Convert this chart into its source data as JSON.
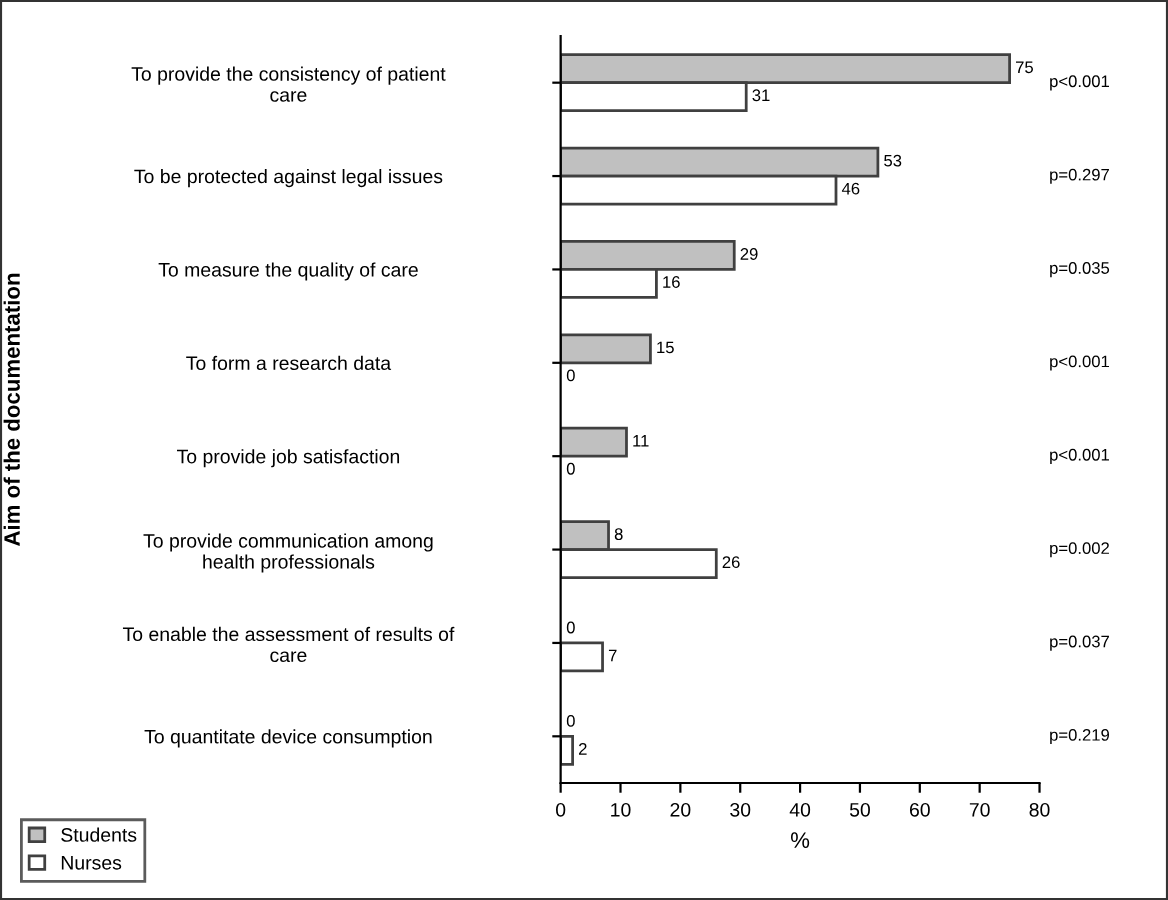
{
  "chart_data": {
    "type": "bar",
    "orientation": "horizontal",
    "ylabel": "Aim of the documentation",
    "xlabel": "%",
    "categories": [
      "To provide the consistency of patient\ncare",
      "To be protected against legal issues",
      "To measure the quality of care",
      "To form a research data",
      "To provide job satisfaction",
      "To provide communication among\nhealth professionals",
      "To enable the assessment of results of\ncare",
      "To quantitate device consumption"
    ],
    "series": [
      {
        "name": "Students",
        "color": "#c0c0c0",
        "values": [
          75,
          53,
          29,
          15,
          11,
          8,
          0,
          0
        ]
      },
      {
        "name": "Nurses",
        "color": "#ffffff",
        "values": [
          31,
          46,
          16,
          0,
          0,
          26,
          7,
          2
        ]
      }
    ],
    "data_labels": true,
    "xlim": [
      0,
      80
    ],
    "xticks": [
      0,
      10,
      20,
      30,
      40,
      50,
      60,
      70,
      80
    ],
    "grid": false,
    "legend": "bottom left",
    "annotations": [
      "p<0.001",
      "p=0.297",
      "p=0.035",
      "p<0.001",
      "p<0.001",
      "p=0.002",
      "p=0.037",
      "p=0.219"
    ]
  }
}
